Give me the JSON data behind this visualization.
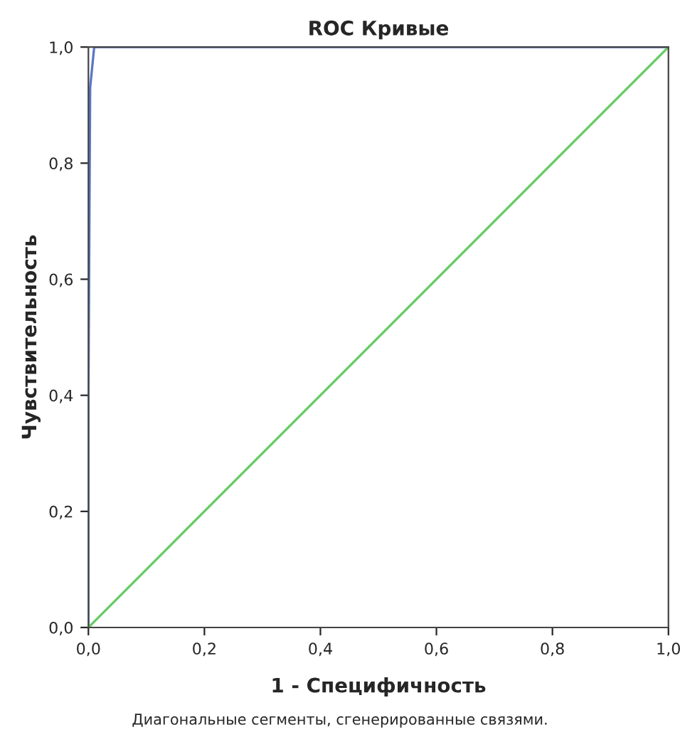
{
  "chart_data": {
    "type": "line",
    "title": "ROC Кривые",
    "xlabel": "1 - Специфичность",
    "ylabel": "Чувствительность",
    "annotations": [
      "Диагональные сегменты, сгенерированные связями."
    ],
    "series": [
      {
        "color": "#5a78c8",
        "x": [
          0,
          0,
          0.003,
          0.01,
          1
        ],
        "values": [
          0,
          0.4,
          0.93,
          1,
          1
        ]
      },
      {
        "color": "#66cc66",
        "x": [
          0,
          1
        ],
        "values": [
          0,
          1
        ]
      }
    ],
    "xlim": [
      0,
      1
    ],
    "ylim": [
      0,
      1
    ],
    "xticks": [
      {
        "value": 0,
        "label": "0,0"
      },
      {
        "value": 0.2,
        "label": "0,2"
      },
      {
        "value": 0.4,
        "label": "0,4"
      },
      {
        "value": 0.6,
        "label": "0,6"
      },
      {
        "value": 0.8,
        "label": "0,8"
      },
      {
        "value": 1,
        "label": "1,0"
      }
    ],
    "yticks": [
      {
        "value": 0,
        "label": "0,0"
      },
      {
        "value": 0.2,
        "label": "0,2"
      },
      {
        "value": 0.4,
        "label": "0,4"
      },
      {
        "value": 0.6,
        "label": "0,6"
      },
      {
        "value": 0.8,
        "label": "0,8"
      },
      {
        "value": 1,
        "label": "1,0"
      }
    ],
    "grid": false,
    "legend": false
  }
}
